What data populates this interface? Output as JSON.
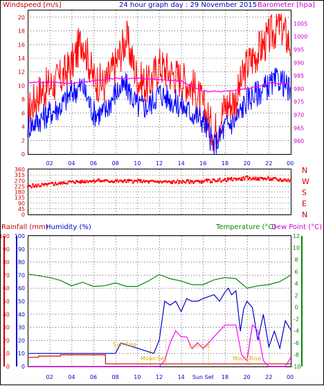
{
  "header": {
    "left_label": "Windspeed [m/s]",
    "title": "24 hour graph day : 29 November 2015",
    "right_label": "Barometer [hpa]"
  },
  "lower_header": {
    "rainfall_label": "Rainfall (mm)",
    "humidity_label": "Humidity (%)",
    "temperature_label": "Temperature (°C)",
    "dewpoint_label": "Dew Point (°C)"
  },
  "x_ticks": [
    "02",
    "04",
    "06",
    "08",
    "10",
    "12",
    "14",
    "16",
    "18",
    "20",
    "22",
    "00"
  ],
  "lower_x_labels": [
    "02",
    "04",
    "06",
    "08",
    "10",
    "12",
    "14",
    "Sun Set",
    "18",
    "20",
    "22",
    "00"
  ],
  "wind_dir_labels": [
    "N",
    "W",
    "S",
    "E",
    "N"
  ],
  "sun_moon_labels": {
    "sun_rise": "Sun Rise",
    "moon_set": "Moon Set",
    "sun_set": "Sun Set",
    "moon_rise": "Moon Rise"
  },
  "colors": {
    "windspeed": "#ff0000",
    "gust": "#0000ff",
    "barometer": "#ff00ff",
    "rain": "#cc0000",
    "humidity": "#0000cc",
    "temperature": "#008800",
    "dewpoint": "#ff00ff",
    "grid": "#000000"
  },
  "chart_data": [
    {
      "type": "line",
      "title": "24 hour graph day : 29 November 2015",
      "xlabel": "",
      "ylabel": "Windspeed [m/s]",
      "ylabel_right": "Barometer [hpa]",
      "x_ticks": [
        "02",
        "04",
        "06",
        "08",
        "10",
        "12",
        "14",
        "16",
        "18",
        "20",
        "22",
        "00"
      ],
      "ylim": [
        0,
        21
      ],
      "ylim_right": [
        955,
        1010
      ],
      "yticks": [
        0,
        2,
        4,
        6,
        8,
        10,
        12,
        14,
        16,
        18,
        20
      ],
      "yticks_right": [
        960,
        965,
        970,
        975,
        980,
        985,
        990,
        995,
        1000,
        1005
      ],
      "series": [
        {
          "name": "Windspeed (red)",
          "axis": "left",
          "x": [
            0,
            1,
            2,
            3,
            4,
            5,
            6,
            7,
            8,
            9,
            10,
            11,
            12,
            13,
            14,
            15,
            16,
            17,
            18,
            19,
            20,
            21,
            22,
            23,
            24
          ],
          "values": [
            6,
            9,
            10,
            11,
            13,
            17,
            11,
            10,
            13,
            17,
            11,
            10,
            13,
            12,
            11,
            10,
            7,
            3,
            7,
            8,
            13,
            15,
            17,
            19,
            16
          ]
        },
        {
          "name": "Gust (blue)",
          "axis": "left",
          "x": [
            0,
            1,
            2,
            3,
            4,
            5,
            6,
            7,
            8,
            9,
            10,
            11,
            12,
            13,
            14,
            15,
            16,
            17,
            18,
            19,
            20,
            21,
            22,
            23,
            24
          ],
          "values": [
            4,
            5,
            6,
            7,
            9,
            10,
            6,
            6,
            9,
            10,
            7,
            7,
            9,
            8,
            7,
            6,
            5,
            1,
            4,
            5,
            8,
            9,
            10,
            11,
            9
          ]
        },
        {
          "name": "Barometer (magenta)",
          "axis": "right",
          "x": [
            0,
            2,
            4,
            6,
            8,
            10,
            12,
            14,
            16,
            18,
            20,
            22,
            24
          ],
          "values": [
            982.5,
            982.5,
            982,
            983,
            984,
            984,
            983.5,
            983,
            979,
            979,
            980,
            982,
            982
          ]
        }
      ]
    },
    {
      "type": "scatter",
      "ylabel": "Wind direction (degrees)",
      "ylim": [
        0,
        360
      ],
      "yticks": [
        0,
        45,
        90,
        135,
        180,
        225,
        270,
        315,
        360
      ],
      "x_ticks": [
        "02",
        "04",
        "06",
        "08",
        "10",
        "12",
        "14",
        "16",
        "18",
        "20",
        "22",
        "00"
      ],
      "series": [
        {
          "name": "Wind direction",
          "x": [
            0,
            2,
            4,
            6,
            8,
            10,
            12,
            14,
            16,
            18,
            20,
            22,
            24
          ],
          "values": [
            225,
            240,
            260,
            270,
            265,
            265,
            260,
            260,
            265,
            275,
            290,
            285,
            270
          ]
        }
      ]
    },
    {
      "type": "line",
      "ylabel_left": "Rainfall (mm) / Humidity (%)",
      "ylabel_right": "Temperature (°C) / Dew Point (°C)",
      "ylim": [
        0,
        100
      ],
      "ylim_right": [
        -10,
        12
      ],
      "yticks": [
        0,
        10,
        20,
        30,
        40,
        50,
        60,
        70,
        80,
        90,
        100
      ],
      "yticks_right": [
        -10,
        -8,
        -6,
        -4,
        -2,
        0,
        2,
        4,
        6,
        8,
        10,
        12
      ],
      "x_ticks": [
        "02",
        "04",
        "06",
        "08",
        "10",
        "12",
        "14",
        "Sun Set",
        "18",
        "20",
        "22",
        "00"
      ],
      "series": [
        {
          "name": "Rainfall (red)",
          "axis": "left",
          "x": [
            0,
            1,
            3,
            6,
            7,
            7.1,
            12,
            24
          ],
          "values": [
            7,
            8,
            9,
            9,
            9,
            2,
            2,
            2
          ]
        },
        {
          "name": "Humidity (blue)",
          "axis": "left",
          "x": [
            0,
            8,
            8.5,
            11.5,
            12,
            12.5,
            13,
            13.5,
            14,
            14.5,
            15,
            15.5,
            16,
            17,
            17.5,
            18,
            18.3,
            18.6,
            19,
            19.4,
            19.7,
            20,
            20.5,
            21,
            21.5,
            22,
            22.5,
            23,
            23.5,
            24
          ],
          "values": [
            10,
            10,
            18,
            10,
            20,
            50,
            47,
            50,
            42,
            52,
            50,
            50,
            52,
            55,
            50,
            57,
            60,
            55,
            58,
            27,
            44,
            50,
            45,
            20,
            40,
            15,
            27,
            14,
            35,
            28
          ]
        },
        {
          "name": "Temperature (green)",
          "axis": "right",
          "x": [
            0,
            2,
            3,
            4,
            5,
            6,
            7,
            8,
            9,
            10,
            11,
            12,
            13,
            14,
            15,
            16,
            17,
            18,
            19,
            20,
            21,
            22,
            23,
            24
          ],
          "values": [
            5.6,
            5,
            4.5,
            3.6,
            4.2,
            3.5,
            3.6,
            4.1,
            3.5,
            3.5,
            4.4,
            5.5,
            4.8,
            4.4,
            3.8,
            3.8,
            4.6,
            5,
            4.8,
            3.2,
            3.6,
            3.8,
            4.3,
            5.4
          ]
        },
        {
          "name": "Dew Point (magenta)",
          "axis": "right",
          "x": [
            0,
            12,
            12.5,
            13,
            13.5,
            14,
            14.5,
            15,
            15.5,
            16,
            16.5,
            17,
            17.5,
            18,
            18.5,
            19,
            19.5,
            20,
            20.5,
            21,
            21.5,
            22,
            22.5,
            23,
            23.5,
            24
          ],
          "values": [
            -10,
            -10,
            -9,
            -6,
            -4,
            -5,
            -5,
            -7,
            -6,
            -7,
            -6,
            -5,
            -4,
            -3,
            -3,
            -3,
            -8,
            -9,
            -3,
            -4,
            -9,
            -10,
            -10,
            -10,
            -10,
            -8.5
          ]
        }
      ]
    }
  ]
}
